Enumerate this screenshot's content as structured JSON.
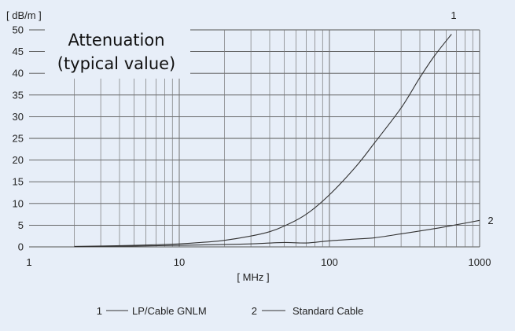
{
  "chart_data": {
    "type": "line",
    "title": "Attenuation",
    "subtitle": "(typical value)",
    "ylabel": "[ dB/m ]",
    "xlabel": "[ MHz ]",
    "x_scale": "log",
    "xlim": [
      1,
      1000
    ],
    "ylim": [
      0,
      50
    ],
    "x_ticks": [
      "1",
      "10",
      "100",
      "1000"
    ],
    "y_ticks": [
      "0",
      "5",
      "10",
      "15",
      "20",
      "25",
      "30",
      "35",
      "40",
      "45",
      "50"
    ],
    "grid": true,
    "legend_position": "bottom",
    "legend": [
      {
        "key": "1",
        "name": "LP/Cable GNLM"
      },
      {
        "key": "2",
        "name": "Standard Cable"
      }
    ],
    "series": [
      {
        "key": "1",
        "name": "LP/Cable GNLM",
        "x": [
          2,
          3,
          5,
          7,
          10,
          15,
          20,
          30,
          40,
          50,
          70,
          100,
          150,
          200,
          300,
          400,
          500,
          650
        ],
        "y": [
          0.1,
          0.2,
          0.35,
          0.5,
          0.7,
          1.1,
          1.5,
          2.5,
          3.5,
          4.8,
          7.5,
          12,
          18.5,
          24,
          32,
          39,
          44,
          49
        ]
      },
      {
        "key": "2",
        "name": "Standard Cable",
        "x": [
          2,
          5,
          10,
          20,
          30,
          50,
          70,
          100,
          150,
          200,
          300,
          500,
          700,
          1000
        ],
        "y": [
          0.05,
          0.2,
          0.35,
          0.55,
          0.7,
          1.0,
          0.9,
          1.4,
          1.8,
          2.1,
          3.0,
          4.2,
          5.1,
          6.1
        ]
      }
    ]
  }
}
